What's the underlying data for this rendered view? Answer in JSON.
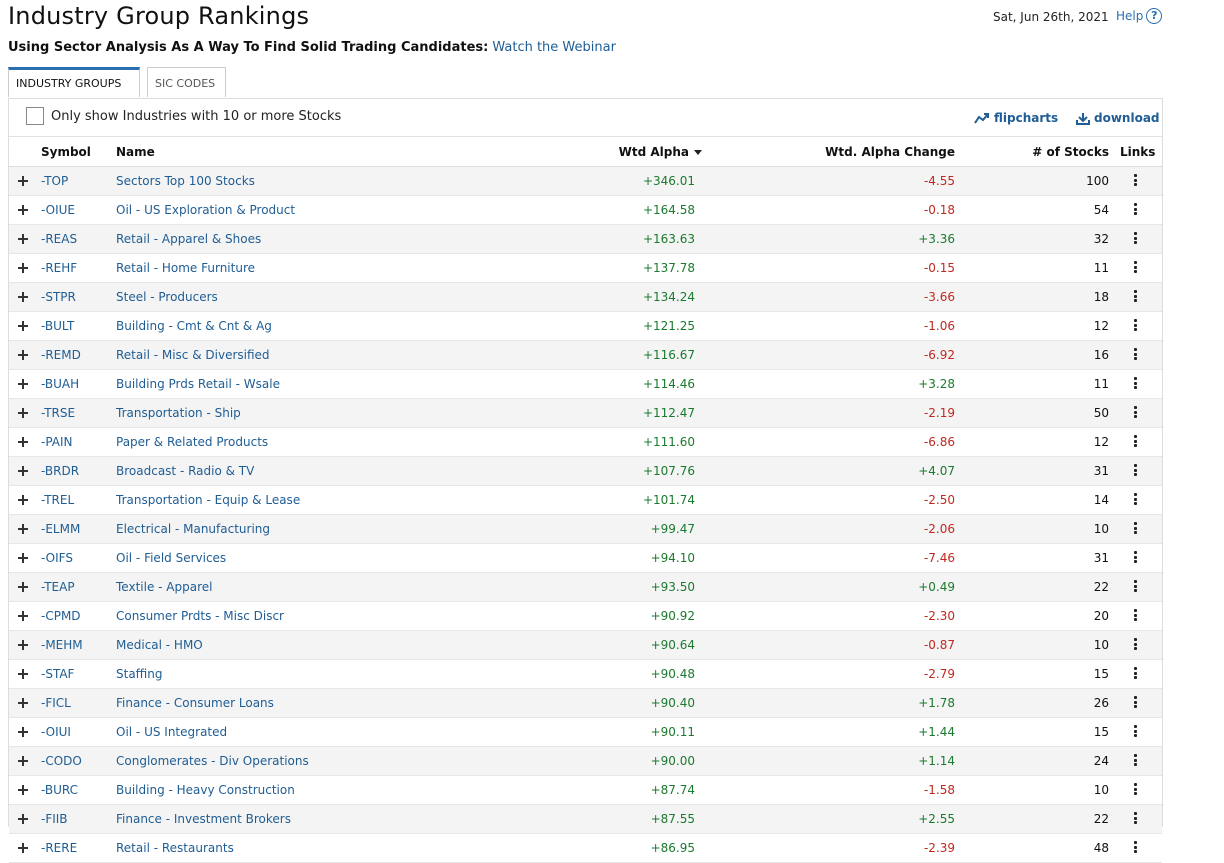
{
  "header": {
    "title": "Industry Group Rankings",
    "date": "Sat, Jun 26th, 2021",
    "help_label": "Help",
    "subtitle": "Using Sector Analysis As A Way To Find Solid Trading Candidates:",
    "subtitle_link": "Watch the Webinar"
  },
  "tabs": [
    {
      "label": "INDUSTRY GROUPS",
      "active": true
    },
    {
      "label": "SIC CODES",
      "active": false
    }
  ],
  "filter": {
    "label": "Only show Industries with 10 or more Stocks",
    "checked": false,
    "flipcharts_label": "flipcharts",
    "download_label": "download"
  },
  "columns": {
    "symbol": "Symbol",
    "name": "Name",
    "wtd_alpha": "Wtd Alpha",
    "wtd_alpha_change": "Wtd. Alpha Change",
    "num_stocks": "# of Stocks",
    "links": "Links"
  },
  "rows": [
    {
      "symbol": "-TOP",
      "name": "Sectors Top 100 Stocks",
      "alpha": "+346.01",
      "change": "-4.55",
      "stocks": "100"
    },
    {
      "symbol": "-OIUE",
      "name": "Oil - US Exploration & Product",
      "alpha": "+164.58",
      "change": "-0.18",
      "stocks": "54"
    },
    {
      "symbol": "-REAS",
      "name": "Retail - Apparel & Shoes",
      "alpha": "+163.63",
      "change": "+3.36",
      "stocks": "32"
    },
    {
      "symbol": "-REHF",
      "name": "Retail - Home Furniture",
      "alpha": "+137.78",
      "change": "-0.15",
      "stocks": "11"
    },
    {
      "symbol": "-STPR",
      "name": "Steel - Producers",
      "alpha": "+134.24",
      "change": "-3.66",
      "stocks": "18"
    },
    {
      "symbol": "-BULT",
      "name": "Building - Cmt & Cnt & Ag",
      "alpha": "+121.25",
      "change": "-1.06",
      "stocks": "12"
    },
    {
      "symbol": "-REMD",
      "name": "Retail - Misc & Diversified",
      "alpha": "+116.67",
      "change": "-6.92",
      "stocks": "16"
    },
    {
      "symbol": "-BUAH",
      "name": "Building Prds Retail - Wsale",
      "alpha": "+114.46",
      "change": "+3.28",
      "stocks": "11"
    },
    {
      "symbol": "-TRSE",
      "name": "Transportation - Ship",
      "alpha": "+112.47",
      "change": "-2.19",
      "stocks": "50"
    },
    {
      "symbol": "-PAIN",
      "name": "Paper & Related Products",
      "alpha": "+111.60",
      "change": "-6.86",
      "stocks": "12"
    },
    {
      "symbol": "-BRDR",
      "name": "Broadcast - Radio & TV",
      "alpha": "+107.76",
      "change": "+4.07",
      "stocks": "31"
    },
    {
      "symbol": "-TREL",
      "name": "Transportation - Equip & Lease",
      "alpha": "+101.74",
      "change": "-2.50",
      "stocks": "14"
    },
    {
      "symbol": "-ELMM",
      "name": "Electrical - Manufacturing",
      "alpha": "+99.47",
      "change": "-2.06",
      "stocks": "10"
    },
    {
      "symbol": "-OIFS",
      "name": "Oil - Field Services",
      "alpha": "+94.10",
      "change": "-7.46",
      "stocks": "31"
    },
    {
      "symbol": "-TEAP",
      "name": "Textile - Apparel",
      "alpha": "+93.50",
      "change": "+0.49",
      "stocks": "22"
    },
    {
      "symbol": "-CPMD",
      "name": "Consumer Prdts - Misc Discr",
      "alpha": "+90.92",
      "change": "-2.30",
      "stocks": "20"
    },
    {
      "symbol": "-MEHM",
      "name": "Medical - HMO",
      "alpha": "+90.64",
      "change": "-0.87",
      "stocks": "10"
    },
    {
      "symbol": "-STAF",
      "name": "Staffing",
      "alpha": "+90.48",
      "change": "-2.79",
      "stocks": "15"
    },
    {
      "symbol": "-FICL",
      "name": "Finance - Consumer Loans",
      "alpha": "+90.40",
      "change": "+1.78",
      "stocks": "26"
    },
    {
      "symbol": "-OIUI",
      "name": "Oil - US Integrated",
      "alpha": "+90.11",
      "change": "+1.44",
      "stocks": "15"
    },
    {
      "symbol": "-CODO",
      "name": "Conglomerates - Div Operations",
      "alpha": "+90.00",
      "change": "+1.14",
      "stocks": "24"
    },
    {
      "symbol": "-BURC",
      "name": "Building - Heavy Construction",
      "alpha": "+87.74",
      "change": "-1.58",
      "stocks": "10"
    },
    {
      "symbol": "-FIIB",
      "name": "Finance - Investment Brokers",
      "alpha": "+87.55",
      "change": "+2.55",
      "stocks": "22"
    },
    {
      "symbol": "-RERE",
      "name": "Retail - Restaurants",
      "alpha": "+86.95",
      "change": "-2.39",
      "stocks": "48"
    }
  ],
  "colors": {
    "link": "#1f5d94",
    "positive": "#1a7a2e",
    "negative": "#c0281f",
    "accent": "#2a6fb0"
  }
}
